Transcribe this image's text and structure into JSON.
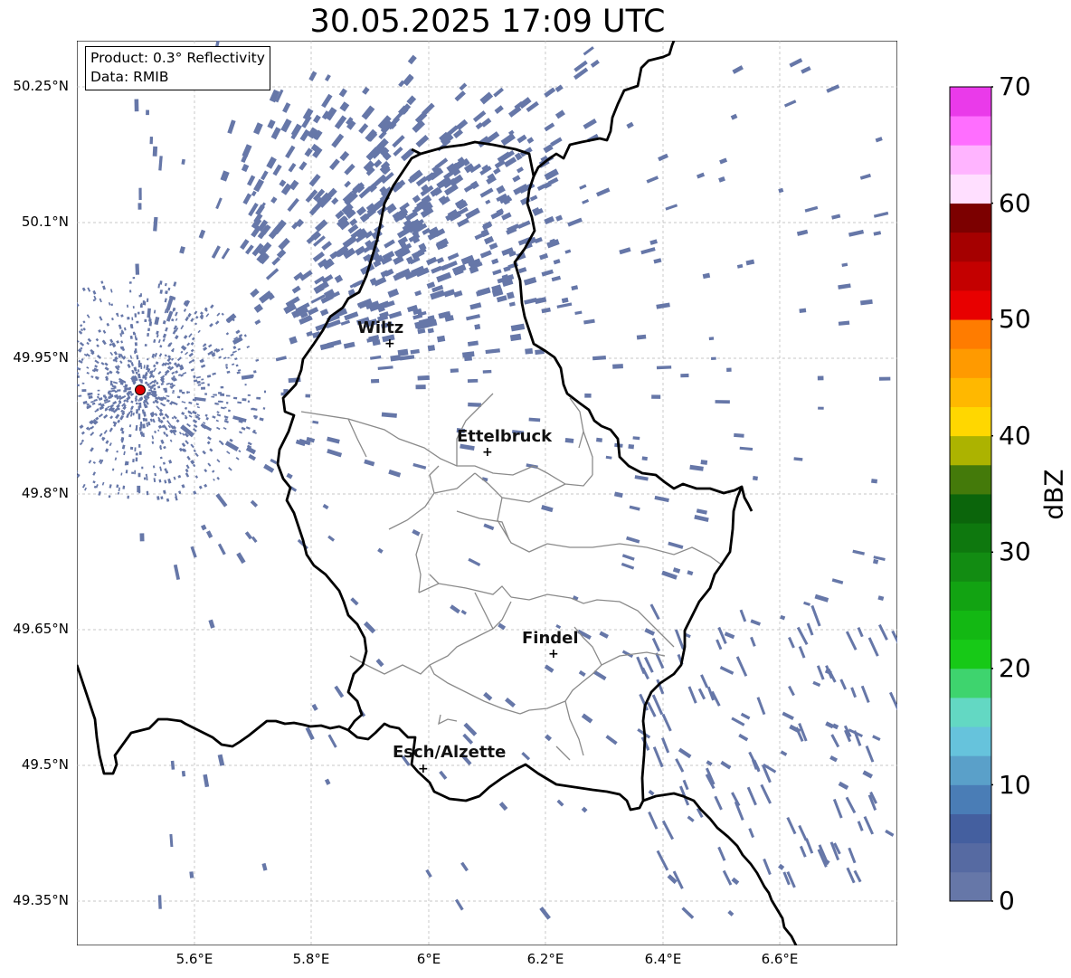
{
  "title": "30.05.2025 17:09 UTC",
  "info_box": {
    "product": "Product: 0.3° Reflectivity",
    "data_source": "Data: RMIB"
  },
  "axes": {
    "lat_ticks": [
      "50.25°N",
      "50.1°N",
      "49.95°N",
      "49.8°N",
      "49.65°N",
      "49.5°N",
      "49.35°N"
    ],
    "lon_ticks": [
      "5.6°E",
      "5.8°E",
      "6°E",
      "6.2°E",
      "6.4°E",
      "6.6°E"
    ]
  },
  "cities": [
    {
      "name": "Wiltz"
    },
    {
      "name": "Ettelbruck"
    },
    {
      "name": "Findel"
    },
    {
      "name": "Esch/Alzette"
    }
  ],
  "radar_site_color": "#e00000",
  "echo_color": "#6677a8",
  "colorbar": {
    "label": "dBZ",
    "ticks": [
      "0",
      "10",
      "20",
      "30",
      "40",
      "50",
      "60",
      "70"
    ],
    "colors": [
      "#6677a8",
      "#566aa2",
      "#445f9f",
      "#4a7db6",
      "#5aa0c9",
      "#66c3dc",
      "#63d8c3",
      "#3ed46e",
      "#17c917",
      "#13b813",
      "#12a312",
      "#128c12",
      "#0e780e",
      "#0b650b",
      "#447a0a",
      "#acb300",
      "#ffd700",
      "#ffb800",
      "#ff9a00",
      "#ff7c00",
      "#e80000",
      "#c40000",
      "#a50000",
      "#7c0000",
      "#ffdfff",
      "#ffb4ff",
      "#ff6eff",
      "#ea3aea"
    ]
  }
}
